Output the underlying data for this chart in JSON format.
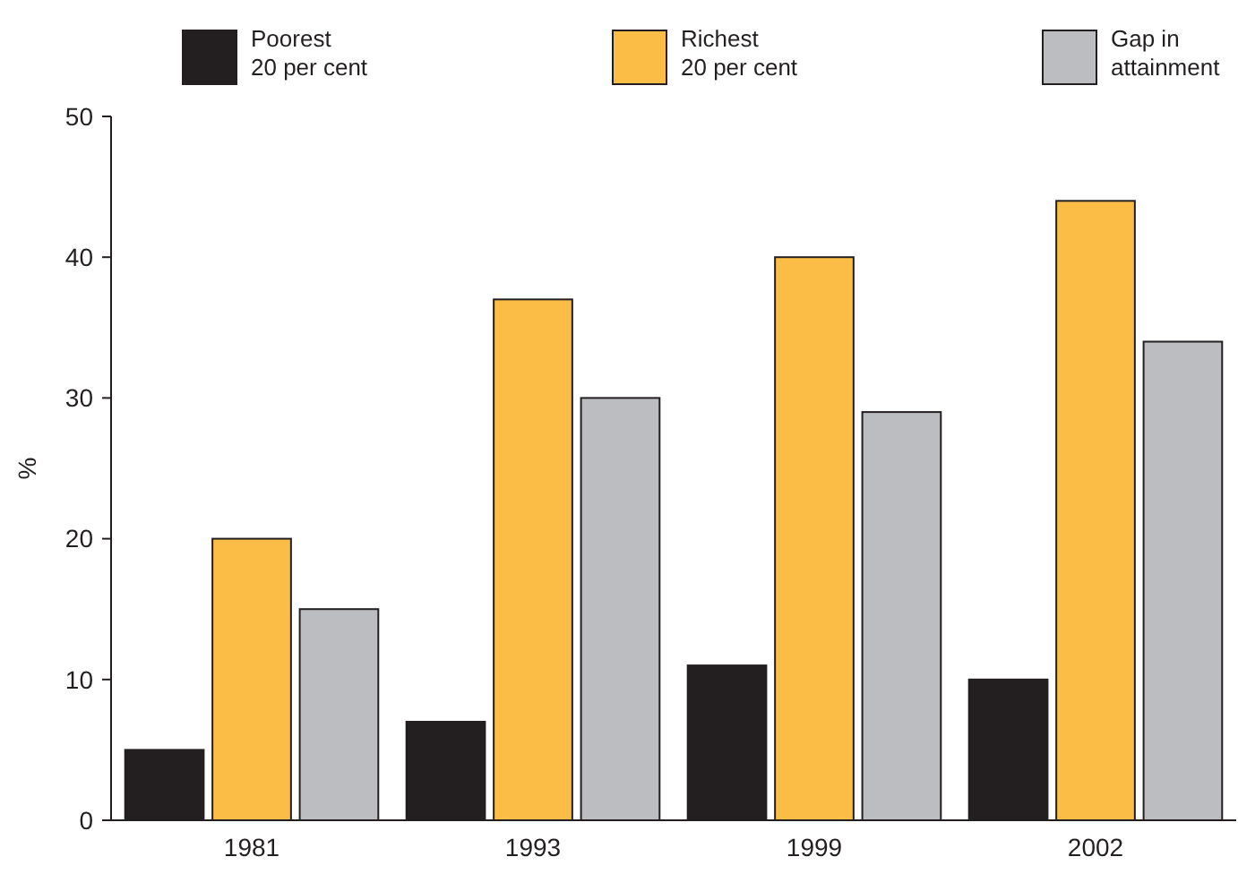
{
  "chart_data": {
    "type": "bar",
    "ylabel": "%",
    "categories": [
      "1981",
      "1993",
      "1999",
      "2002"
    ],
    "series": [
      {
        "name": "Poorest 20 per cent",
        "color": "#231f20",
        "values": [
          5,
          7,
          11,
          10
        ]
      },
      {
        "name": "Richest 20 per cent",
        "color": "#fbbd45",
        "values": [
          20,
          37,
          40,
          44
        ]
      },
      {
        "name": "Gap in attainment",
        "color": "#bcbdc0",
        "values": [
          15,
          30,
          29,
          34
        ]
      }
    ],
    "ylim": [
      0,
      50
    ],
    "yticks": [
      0,
      10,
      20,
      30,
      40,
      50
    ],
    "legend": "top",
    "grid": false
  }
}
